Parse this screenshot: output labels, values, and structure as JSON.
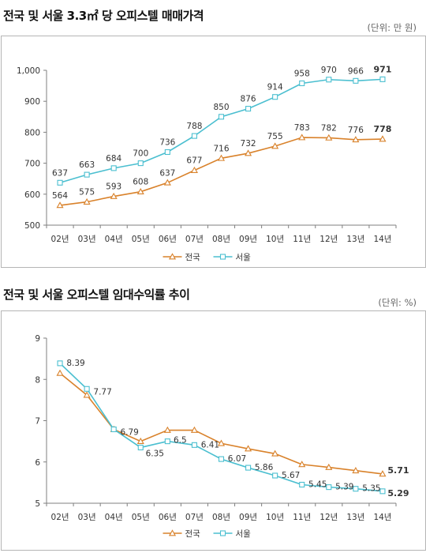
{
  "chart1": {
    "title": "전국 및 서울 3.3㎡ 당 오피스텔 매매가격",
    "unit": "(단위: 만 원)"
  },
  "chart2": {
    "title": "전국 및 서울 오피스텔 임대수익률 추이",
    "unit": "(단위: %)"
  },
  "colors": {
    "nation": "#d9822b",
    "seoul": "#4bbfd0",
    "axis": "#7f7f7f"
  },
  "chart_data": [
    {
      "type": "line",
      "title": "전국 및 서울 3.3㎡ 당 오피스텔 매매가격",
      "unit": "(단위: 만 원)",
      "categories": [
        "02년",
        "03년",
        "04년",
        "05년",
        "06년",
        "07년",
        "08년",
        "09년",
        "10년",
        "11년",
        "12년",
        "13년",
        "14년"
      ],
      "ylim": [
        500,
        1000
      ],
      "yticks": [
        500,
        600,
        700,
        800,
        900,
        1000
      ],
      "ytick_labels": [
        "500",
        "600",
        "700",
        "800",
        "900",
        "1,000"
      ],
      "grid": false,
      "legend": "bottom",
      "series": [
        {
          "name": "전국",
          "marker": "triangle",
          "values": [
            564,
            575,
            593,
            608,
            637,
            677,
            716,
            732,
            755,
            783,
            782,
            776,
            778
          ],
          "labels": [
            "564",
            "575",
            "593",
            "608",
            "637",
            "677",
            "716",
            "732",
            "755",
            "783",
            "782",
            "776",
            "778"
          ]
        },
        {
          "name": "서울",
          "marker": "square",
          "values": [
            637,
            663,
            684,
            700,
            736,
            788,
            850,
            876,
            914,
            958,
            970,
            966,
            971
          ],
          "labels": [
            "637",
            "663",
            "684",
            "700",
            "736",
            "788",
            "850",
            "876",
            "914",
            "958",
            "970",
            "966",
            "971"
          ]
        }
      ]
    },
    {
      "type": "line",
      "title": "전국 및 서울 오피스텔 임대수익률 추이",
      "unit": "(단위: %)",
      "categories": [
        "02년",
        "03년",
        "04년",
        "05년",
        "06년",
        "07년",
        "08년",
        "09년",
        "10년",
        "11년",
        "12년",
        "13년",
        "14년"
      ],
      "ylim": [
        5,
        9
      ],
      "yticks": [
        5,
        6,
        7,
        8,
        9
      ],
      "ytick_labels": [
        "5",
        "6",
        "7",
        "8",
        "9"
      ],
      "grid": false,
      "legend": "bottom",
      "series": [
        {
          "name": "전국",
          "marker": "triangle",
          "values": [
            8.15,
            7.62,
            6.79,
            6.5,
            6.77,
            6.77,
            6.45,
            6.32,
            6.2,
            5.94,
            5.87,
            5.79,
            5.71
          ],
          "labels": [
            "",
            "",
            "",
            "",
            "",
            "",
            "",
            "",
            "",
            "",
            "",
            "",
            "5.71"
          ]
        },
        {
          "name": "서울",
          "marker": "square",
          "values": [
            8.39,
            7.77,
            6.79,
            6.35,
            6.5,
            6.41,
            6.07,
            5.86,
            5.67,
            5.45,
            5.39,
            5.35,
            5.29
          ],
          "labels": [
            "8.39",
            "7.77",
            "6.79",
            "6.35",
            "6.5",
            "6.41",
            "6.07",
            "5.86",
            "5.67",
            "5.45",
            "5.39",
            "5.35",
            "5.29"
          ]
        }
      ]
    }
  ]
}
